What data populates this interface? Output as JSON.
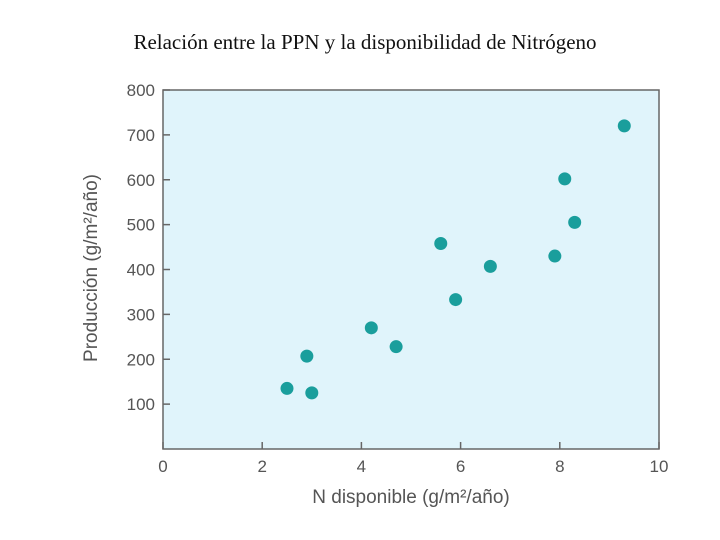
{
  "chart_data": {
    "type": "scatter",
    "title": "Relación entre la PPN y la disponibilidad de Nitrógeno",
    "xlabel": "N disponible (g/m²/año)",
    "ylabel": "Producción (g/m²/año)",
    "xlim": [
      0,
      10
    ],
    "ylim": [
      0,
      800
    ],
    "xticks": [
      "0",
      "2",
      "4",
      "6",
      "8",
      "10"
    ],
    "yticks": [
      "100",
      "200",
      "300",
      "400",
      "500",
      "600",
      "700",
      "800"
    ],
    "grid": false,
    "background_color": "#e0f4fb",
    "point_color": "#1a9e9c",
    "points": [
      {
        "x": 2.5,
        "y": 135
      },
      {
        "x": 2.9,
        "y": 207
      },
      {
        "x": 3.0,
        "y": 125
      },
      {
        "x": 4.2,
        "y": 270
      },
      {
        "x": 4.7,
        "y": 228
      },
      {
        "x": 5.6,
        "y": 458
      },
      {
        "x": 5.9,
        "y": 333
      },
      {
        "x": 6.6,
        "y": 407
      },
      {
        "x": 7.9,
        "y": 430
      },
      {
        "x": 8.1,
        "y": 602
      },
      {
        "x": 8.3,
        "y": 505
      },
      {
        "x": 9.3,
        "y": 720
      }
    ]
  }
}
